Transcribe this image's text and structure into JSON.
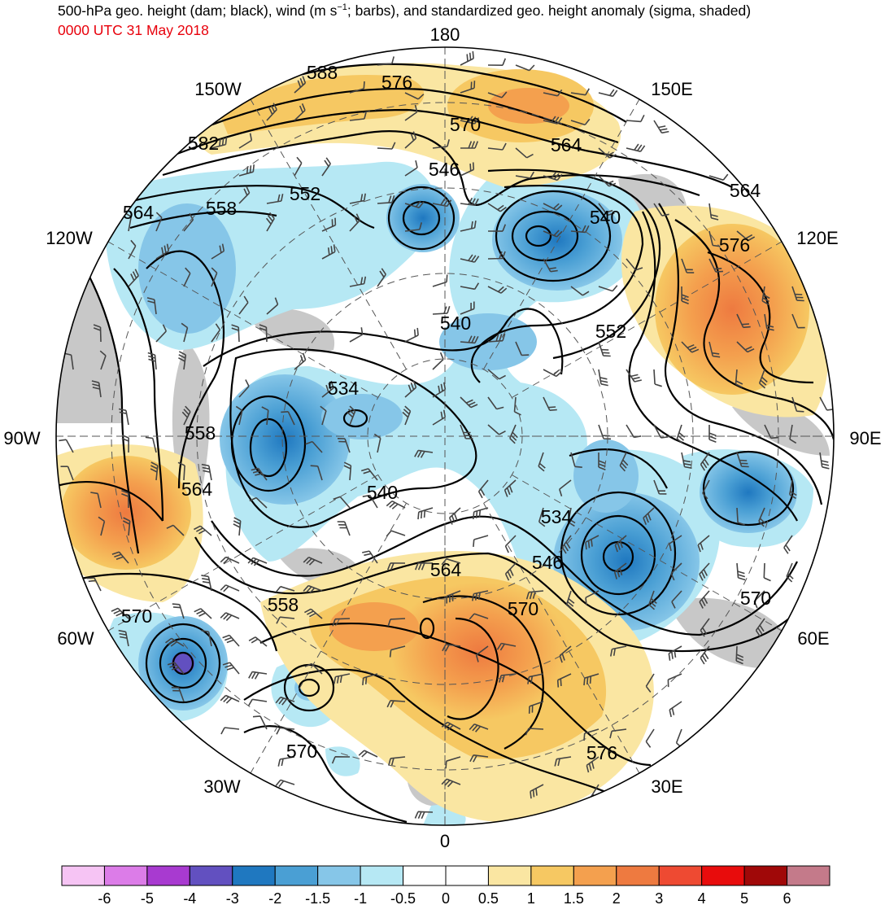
{
  "header": {
    "title_pre": "500-hPa geo. height (dam; black), wind (m s",
    "title_sup": "−1",
    "title_post": "; barbs), and standardized geo. height anomaly (sigma, shaded)",
    "subtitle": "0000 UTC 31 May 2018"
  },
  "colors": {
    "title_text": "#000000",
    "subtitle_text": "#e8000b",
    "ocean_missing": "#c8c8c8",
    "contour": "#000000"
  },
  "map": {
    "projection": "north-polar-stereographic",
    "longitude_labels": [
      "180",
      "150E",
      "120E",
      "90E",
      "60E",
      "30E",
      "0",
      "30W",
      "60W",
      "90W",
      "120W",
      "150W"
    ],
    "height_contour_labels": [
      "588",
      "576",
      "570",
      "564",
      "582",
      "546",
      "540",
      "564",
      "552",
      "558",
      "564",
      "576",
      "540",
      "552",
      "534",
      "558",
      "564",
      "540",
      "534",
      "564",
      "546",
      "570",
      "558",
      "570",
      "570",
      "570",
      "576"
    ]
  },
  "colorbar": {
    "ticks": [
      "-6",
      "-5",
      "-4",
      "-3",
      "-2",
      "-1.5",
      "-1",
      "-0.5",
      "0",
      "0.5",
      "1",
      "1.5",
      "2",
      "3",
      "4",
      "5",
      "6"
    ],
    "colors": [
      "#f6c4f4",
      "#dc7ce8",
      "#a83ad0",
      "#6250c0",
      "#1f78c0",
      "#4a9fd4",
      "#86c6e8",
      "#b6e8f4",
      "#ffffff",
      "#ffffff",
      "#fae6a2",
      "#f6c862",
      "#f4a04e",
      "#ee7a40",
      "#ee4a32",
      "#e80c0c",
      "#a00808",
      "#c47a8a"
    ]
  }
}
